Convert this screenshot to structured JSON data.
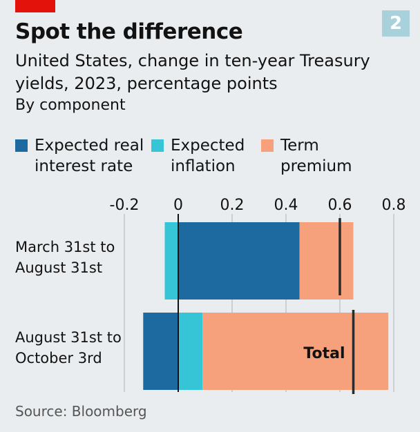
{
  "header": {
    "title": "Spot the difference",
    "badge": "2",
    "subtitle": "United States, change in ten-year Treasury yields, 2023, percentage points",
    "subsubtitle": "By component"
  },
  "source": "Source: Bloomberg",
  "colors": {
    "expected_real": "#1d6aa0",
    "expected_inflation": "#36c4d7",
    "term_premium": "#f6a07c",
    "total_marker": "#2b2b2b",
    "accent_red": "#e3120b",
    "badge": "#a9d1dc"
  },
  "chart_data": {
    "type": "bar",
    "orientation": "horizontal",
    "stacked": true,
    "title": "Spot the difference",
    "subtitle": "United States, change in ten-year Treasury yields, 2023, percentage points",
    "categories": [
      "March 31st to\nAugust 31st",
      "August 31st to\nOctober 3rd"
    ],
    "series": [
      {
        "name": "Expected real\ninterest rate",
        "values": [
          0.45,
          -0.13
        ]
      },
      {
        "name": "Expected\ninflation",
        "values": [
          -0.05,
          0.09
        ]
      },
      {
        "name": "Term\npremium",
        "values": [
          0.2,
          0.69
        ]
      }
    ],
    "total": {
      "label": "Total",
      "values": [
        0.6,
        0.65
      ]
    },
    "xlim": [
      -0.2,
      0.8
    ],
    "xticks": [
      -0.2,
      0,
      0.2,
      0.4,
      0.6,
      0.8
    ],
    "xtick_labels": [
      "-0.2",
      "0",
      "0.2",
      "0.4",
      "0.6",
      "0.8"
    ],
    "grid": true,
    "legend": "top"
  }
}
